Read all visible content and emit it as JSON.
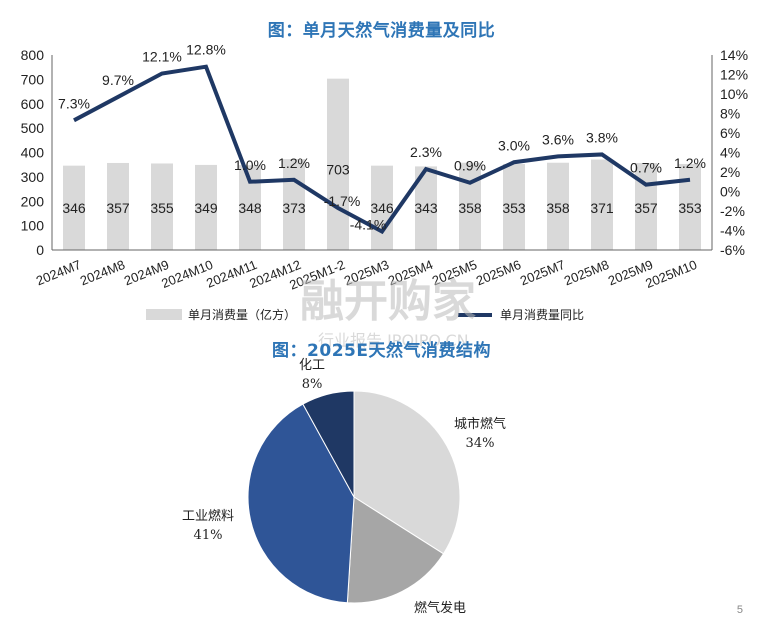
{
  "titles": {
    "chart1": "图：单月天然气消费量及同比",
    "chart2": "图：2025E天然气消费结构"
  },
  "watermark": {
    "main": "融开购家",
    "sub": "行业报告 IPOIPO.CN"
  },
  "colors": {
    "bar": "#D9D9D9",
    "line": "#1F3864",
    "title": "#2E75B6",
    "pie": [
      "#D9D9D9",
      "#A6A6A6",
      "#2F5597",
      "#1F3864"
    ]
  },
  "chart_data": [
    {
      "type": "bar+line",
      "categories": [
        "2024M7",
        "2024M8",
        "2024M9",
        "2024M10",
        "2024M11",
        "2024M12",
        "2025M1-2",
        "2025M3",
        "2025M4",
        "2025M5",
        "2025M6",
        "2025M7",
        "2025M8",
        "2025M9",
        "2025M10"
      ],
      "series": [
        {
          "name": "单月消费量（亿方）",
          "type": "bar",
          "axis": "left",
          "values": [
            346,
            357,
            355,
            349,
            348,
            373,
            703,
            346,
            343,
            358,
            353,
            358,
            371,
            357,
            353
          ],
          "labels": [
            "346",
            "357",
            "355",
            "349",
            "348",
            "373",
            "703",
            "346",
            "343",
            "358",
            "353",
            "358",
            "371",
            "357",
            "353"
          ]
        },
        {
          "name": "单月消费量同比",
          "type": "line",
          "axis": "right",
          "values": [
            7.3,
            9.7,
            12.1,
            12.8,
            1.0,
            1.2,
            -1.7,
            -4.1,
            2.3,
            0.9,
            3.0,
            3.6,
            3.8,
            0.7,
            1.2
          ],
          "labels": [
            "7.3%",
            "9.7%",
            "12.1%",
            "12.8%",
            "1.0%",
            "1.2%",
            "-1.7%",
            "-4.1%",
            "2.3%",
            "0.9%",
            "3.0%",
            "3.6%",
            "3.8%",
            "0.7%",
            "1.2%"
          ]
        }
      ],
      "y_left": {
        "lim": [
          0,
          800
        ],
        "ticks": [
          "0",
          "100",
          "200",
          "300",
          "400",
          "500",
          "600",
          "700",
          "800"
        ]
      },
      "y_right": {
        "lim": [
          -6,
          14
        ],
        "ticks": [
          "-6%",
          "-4%",
          "-2%",
          "0%",
          "2%",
          "4%",
          "6%",
          "8%",
          "10%",
          "12%",
          "14%"
        ]
      },
      "legend": {
        "position": "bottom",
        "items": [
          "单月消费量（亿方）",
          "单月消费量同比"
        ]
      },
      "grid": false
    },
    {
      "type": "pie",
      "slices": [
        {
          "label": "城市燃气",
          "value": 34,
          "text": "34%"
        },
        {
          "label": "燃气发电",
          "value": 17,
          "text": ""
        },
        {
          "label": "工业燃料",
          "value": 41,
          "text": "41%"
        },
        {
          "label": "化工",
          "value": 8,
          "text": "8%"
        }
      ]
    }
  ],
  "page_corner": "5"
}
